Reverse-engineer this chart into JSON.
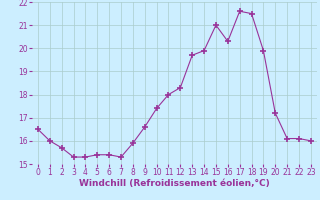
{
  "x": [
    0,
    1,
    2,
    3,
    4,
    5,
    6,
    7,
    8,
    9,
    10,
    11,
    12,
    13,
    14,
    15,
    16,
    17,
    18,
    19,
    20,
    21,
    22,
    23
  ],
  "y": [
    16.5,
    16.0,
    15.7,
    15.3,
    15.3,
    15.4,
    15.4,
    15.3,
    15.9,
    16.6,
    17.4,
    18.0,
    18.3,
    19.7,
    19.9,
    21.0,
    20.3,
    21.6,
    21.5,
    19.9,
    17.2,
    16.1,
    16.1,
    16.0
  ],
  "line_color": "#993399",
  "marker": "+",
  "marker_size": 4,
  "bg_color": "#cceeff",
  "grid_color": "#aacccc",
  "ylim": [
    15,
    22
  ],
  "xlim": [
    -0.5,
    23.5
  ],
  "yticks": [
    15,
    16,
    17,
    18,
    19,
    20,
    21,
    22
  ],
  "xticks": [
    0,
    1,
    2,
    3,
    4,
    5,
    6,
    7,
    8,
    9,
    10,
    11,
    12,
    13,
    14,
    15,
    16,
    17,
    18,
    19,
    20,
    21,
    22,
    23
  ],
  "xlabel": "Windchill (Refroidissement éolien,°C)",
  "xlabel_color": "#993399",
  "tick_color": "#993399",
  "tick_fontsize": 5.5,
  "label_fontsize": 6.5
}
